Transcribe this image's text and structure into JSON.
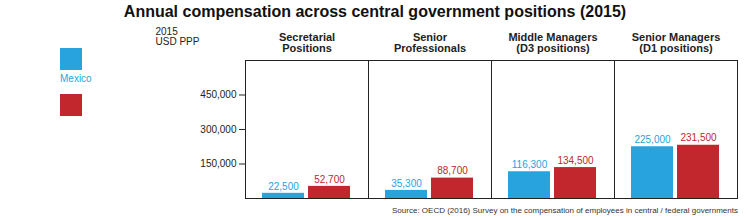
{
  "chart_data": {
    "type": "bar",
    "title": "Annual compensation across central government positions (2015)",
    "y_label": "2015\nUSD PPP",
    "categories": [
      "Secretarial\nPositions",
      "Senior\nProfessionals",
      "Middle Managers\n(D3 positions)",
      "Senior Managers\n(D1 positions)"
    ],
    "series": [
      {
        "name": "Mexico",
        "color": "#29a3dd",
        "values": [
          22500,
          35300,
          116300,
          225000
        ],
        "value_labels": [
          "22,500",
          "35,300",
          "116,300",
          "225,000"
        ]
      },
      {
        "name": null,
        "color": "#c1272d",
        "values": [
          52700,
          88700,
          134500,
          231500
        ],
        "value_labels": [
          "52,700",
          "88,700",
          "134,500",
          "231,500"
        ]
      }
    ],
    "ylim": [
      0,
      600000
    ],
    "yticks": [
      {
        "value": 150000,
        "label": "150,000"
      },
      {
        "value": 300000,
        "label": "300,000"
      },
      {
        "value": 450000,
        "label": "450,000"
      }
    ],
    "grid": false,
    "legend": "left",
    "data_labels": true,
    "caption": "Source: OECD (2016) Survey on the compensation of employees in central / federal governments"
  }
}
